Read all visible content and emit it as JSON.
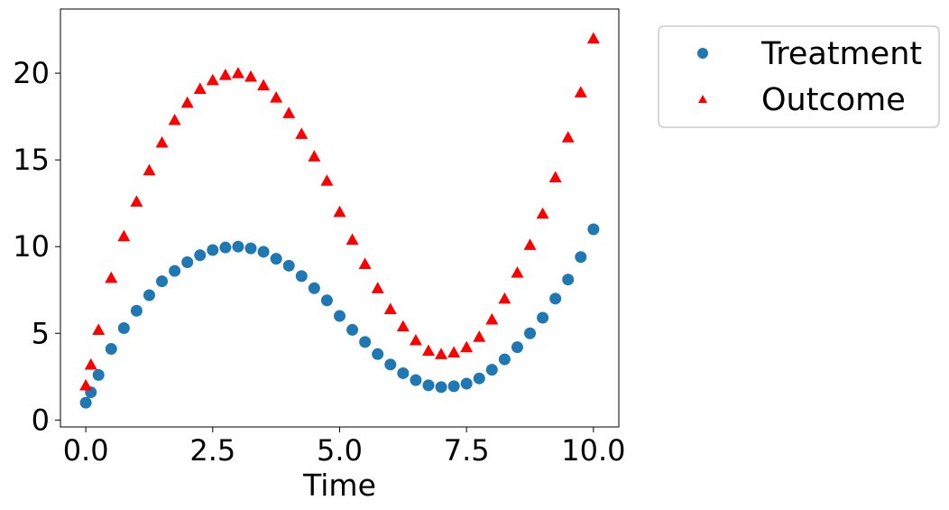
{
  "chart_data": {
    "type": "scatter",
    "title": "",
    "xlabel": "Time",
    "ylabel": "",
    "xlim": [
      -0.5,
      10.5
    ],
    "ylim": [
      -0.4,
      23.7
    ],
    "xticks": [
      0.0,
      2.5,
      5.0,
      7.5,
      10.0
    ],
    "xtick_labels": [
      "0.0",
      "2.5",
      "5.0",
      "7.5",
      "10.0"
    ],
    "yticks": [
      0,
      5,
      10,
      15,
      20
    ],
    "ytick_labels": [
      "0",
      "5",
      "10",
      "15",
      "20"
    ],
    "grid": false,
    "legend_position": "outside upper right",
    "series": [
      {
        "name": "Treatment",
        "marker": "circle",
        "color": "#1f77b4",
        "x": [
          0.0,
          0.1,
          0.25,
          0.5,
          0.75,
          1.0,
          1.25,
          1.5,
          1.75,
          2.0,
          2.25,
          2.5,
          2.75,
          3.0,
          3.25,
          3.5,
          3.75,
          4.0,
          4.25,
          4.5,
          4.75,
          5.0,
          5.25,
          5.5,
          5.75,
          6.0,
          6.25,
          6.5,
          6.75,
          7.0,
          7.25,
          7.5,
          7.75,
          8.0,
          8.25,
          8.5,
          8.75,
          9.0,
          9.25,
          9.5,
          9.75,
          10.0
        ],
        "y": [
          1.0,
          1.6,
          2.6,
          4.1,
          5.3,
          6.3,
          7.2,
          8.0,
          8.6,
          9.1,
          9.5,
          9.8,
          9.95,
          10.0,
          9.9,
          9.7,
          9.3,
          8.9,
          8.3,
          7.6,
          6.9,
          6.0,
          5.2,
          4.5,
          3.8,
          3.2,
          2.7,
          2.3,
          2.0,
          1.9,
          1.95,
          2.1,
          2.4,
          2.9,
          3.5,
          4.2,
          5.0,
          5.9,
          7.0,
          8.1,
          9.4,
          11.0
        ]
      },
      {
        "name": "Outcome",
        "marker": "triangle",
        "color": "#ff0000",
        "x": [
          0.0,
          0.1,
          0.25,
          0.5,
          0.75,
          1.0,
          1.25,
          1.5,
          1.75,
          2.0,
          2.25,
          2.5,
          2.75,
          3.0,
          3.25,
          3.5,
          3.75,
          4.0,
          4.25,
          4.5,
          4.75,
          5.0,
          5.25,
          5.5,
          5.75,
          6.0,
          6.25,
          6.5,
          6.75,
          7.0,
          7.25,
          7.5,
          7.75,
          8.0,
          8.25,
          8.5,
          8.75,
          9.0,
          9.25,
          9.5,
          9.75,
          10.0
        ],
        "y": [
          2.0,
          3.2,
          5.2,
          8.2,
          10.6,
          12.6,
          14.4,
          16.0,
          17.3,
          18.3,
          19.1,
          19.6,
          19.9,
          20.0,
          19.8,
          19.3,
          18.6,
          17.7,
          16.5,
          15.2,
          13.8,
          12.0,
          10.4,
          9.0,
          7.6,
          6.4,
          5.4,
          4.6,
          4.0,
          3.8,
          3.9,
          4.2,
          4.8,
          5.8,
          7.0,
          8.5,
          10.1,
          11.9,
          14.0,
          16.3,
          18.9,
          22.0
        ]
      }
    ]
  }
}
